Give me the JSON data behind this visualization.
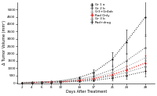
{
  "title": "",
  "xlabel": "Days After Treatment",
  "ylabel": "Δ Tumor Volume (mm³)",
  "xlim": [
    1,
    30
  ],
  "ylim": [
    -50,
    5500
  ],
  "days": [
    2,
    4,
    6,
    8,
    10,
    14,
    17,
    21,
    24,
    28
  ],
  "groups": [
    {
      "label": "Gr 1 a",
      "color": "#111111",
      "linestyle": "dotted",
      "linewidth": 0.7,
      "values": [
        20,
        40,
        60,
        90,
        130,
        350,
        700,
        1600,
        2800,
        4500
      ],
      "errors": [
        10,
        15,
        20,
        30,
        40,
        100,
        200,
        500,
        800,
        1300
      ]
    },
    {
      "label": "Gr 2 b",
      "color": "#555555",
      "linestyle": "dotted",
      "linewidth": 0.7,
      "values": [
        15,
        30,
        50,
        70,
        100,
        240,
        450,
        900,
        1500,
        2400
      ],
      "errors": [
        8,
        12,
        18,
        25,
        35,
        80,
        160,
        350,
        550,
        900
      ]
    },
    {
      "label": "Gr3+Gr4ab",
      "color": "#999999",
      "linestyle": "dotted",
      "linewidth": 0.7,
      "values": [
        12,
        25,
        40,
        60,
        85,
        200,
        350,
        700,
        1100,
        1700
      ],
      "errors": [
        6,
        10,
        15,
        20,
        28,
        65,
        120,
        250,
        400,
        650
      ]
    },
    {
      "label": "Rad Only",
      "color": "#dd0000",
      "linestyle": "dotted",
      "linewidth": 0.8,
      "values": [
        10,
        20,
        33,
        48,
        68,
        160,
        280,
        560,
        870,
        1350
      ],
      "errors": [
        5,
        8,
        12,
        18,
        24,
        55,
        100,
        200,
        320,
        520
      ]
    },
    {
      "label": "Gr 3 b",
      "color": "#777777",
      "linestyle": "dotted",
      "linewidth": 0.7,
      "values": [
        8,
        16,
        27,
        40,
        57,
        130,
        230,
        460,
        710,
        1100
      ],
      "errors": [
        4,
        7,
        10,
        15,
        20,
        45,
        85,
        170,
        270,
        430
      ]
    },
    {
      "label": "Rad+drug",
      "color": "#333333",
      "linestyle": "dotted",
      "linewidth": 0.7,
      "values": [
        5,
        11,
        18,
        28,
        40,
        90,
        160,
        320,
        500,
        780
      ],
      "errors": [
        3,
        5,
        8,
        12,
        16,
        35,
        65,
        130,
        210,
        340
      ]
    }
  ],
  "yticks": [
    0,
    500,
    1000,
    1500,
    2000,
    2500,
    3000,
    3500,
    4000,
    4500,
    5000
  ],
  "ytick_labels": [
    "0",
    "500",
    "1000",
    "1500",
    "2000",
    "2500",
    "3000",
    "3500",
    "4000",
    "4500",
    "5000"
  ],
  "xticks": [
    2,
    4,
    6,
    8,
    10,
    14,
    17,
    21,
    24,
    28
  ],
  "bg_color": "#ffffff",
  "legend_fontsize": 3.0,
  "axis_label_fontsize": 3.5,
  "tick_fontsize": 3.0
}
